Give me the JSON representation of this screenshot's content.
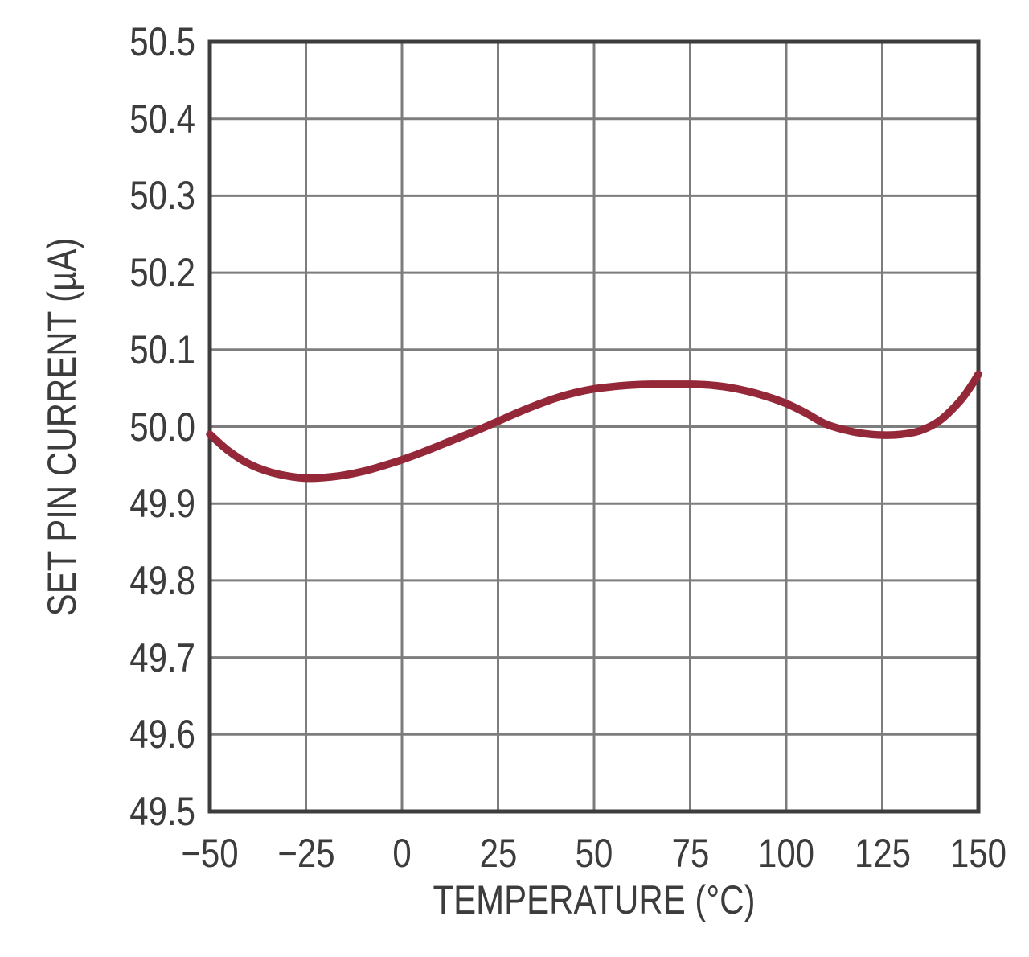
{
  "chart_data": {
    "type": "line",
    "title": "",
    "xlabel": "TEMPERATURE (°C)",
    "ylabel": "SET PIN CURRENT (µA)",
    "xlim": [
      -50,
      150
    ],
    "ylim": [
      49.5,
      50.5
    ],
    "grid": true,
    "legend_position": "none",
    "colors": {
      "curve": "#942838",
      "grid": "#7d7d7d",
      "frame": "#3d3d3d",
      "text": "#3c3c3c",
      "background": "#ffffff"
    },
    "x_ticks": [
      {
        "value": -50,
        "label": "−50"
      },
      {
        "value": -25,
        "label": "−25"
      },
      {
        "value": 0,
        "label": "0"
      },
      {
        "value": 25,
        "label": "25"
      },
      {
        "value": 50,
        "label": "50"
      },
      {
        "value": 75,
        "label": "75"
      },
      {
        "value": 100,
        "label": "100"
      },
      {
        "value": 125,
        "label": "125"
      },
      {
        "value": 150,
        "label": "150"
      }
    ],
    "y_ticks": [
      {
        "value": 50.5,
        "label": "50.5"
      },
      {
        "value": 50.4,
        "label": "50.4"
      },
      {
        "value": 50.3,
        "label": "50.3"
      },
      {
        "value": 50.2,
        "label": "50.2"
      },
      {
        "value": 50.1,
        "label": "50.1"
      },
      {
        "value": 50.0,
        "label": "50.0"
      },
      {
        "value": 49.9,
        "label": "49.9"
      },
      {
        "value": 49.8,
        "label": "49.8"
      },
      {
        "value": 49.7,
        "label": "49.7"
      },
      {
        "value": 49.6,
        "label": "49.6"
      },
      {
        "value": 49.5,
        "label": "49.5"
      }
    ],
    "series": [
      {
        "name": "set-pin-current-vs-temperature",
        "color": "#942838",
        "points": [
          [
            -50,
            49.99
          ],
          [
            -45,
            49.968
          ],
          [
            -40,
            49.952
          ],
          [
            -35,
            49.942
          ],
          [
            -30,
            49.936
          ],
          [
            -25,
            49.933
          ],
          [
            -20,
            49.934
          ],
          [
            -15,
            49.937
          ],
          [
            -10,
            49.942
          ],
          [
            -5,
            49.949
          ],
          [
            0,
            49.957
          ],
          [
            5,
            49.966
          ],
          [
            10,
            49.976
          ],
          [
            15,
            49.986
          ],
          [
            20,
            49.996
          ],
          [
            25,
            50.007
          ],
          [
            30,
            50.018
          ],
          [
            35,
            50.028
          ],
          [
            40,
            50.037
          ],
          [
            45,
            50.044
          ],
          [
            50,
            50.049
          ],
          [
            55,
            50.052
          ],
          [
            60,
            50.054
          ],
          [
            65,
            50.055
          ],
          [
            70,
            50.055
          ],
          [
            75,
            50.055
          ],
          [
            80,
            50.054
          ],
          [
            85,
            50.051
          ],
          [
            90,
            50.046
          ],
          [
            95,
            50.039
          ],
          [
            100,
            50.03
          ],
          [
            105,
            50.018
          ],
          [
            110,
            50.004
          ],
          [
            115,
            49.996
          ],
          [
            120,
            49.991
          ],
          [
            125,
            49.989
          ],
          [
            130,
            49.99
          ],
          [
            135,
            49.995
          ],
          [
            140,
            50.008
          ],
          [
            145,
            50.032
          ],
          [
            148,
            50.052
          ],
          [
            150,
            50.068
          ]
        ]
      }
    ]
  }
}
